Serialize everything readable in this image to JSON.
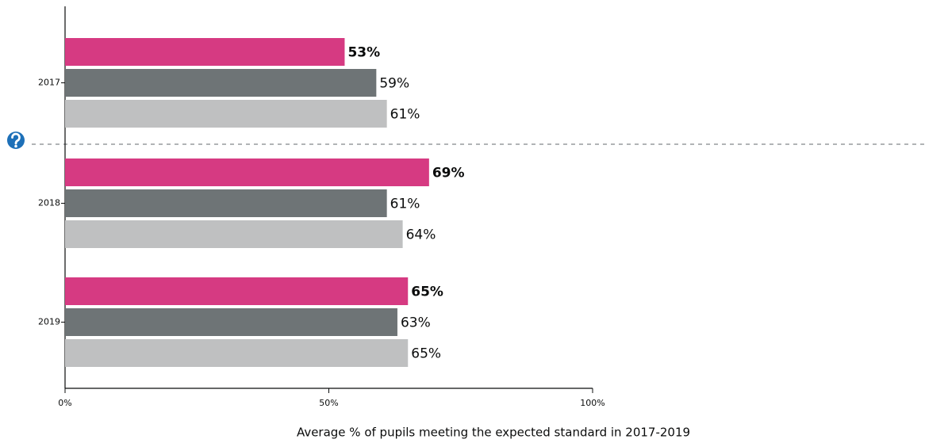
{
  "chart_data": {
    "type": "hbar",
    "x_label": "Average % of pupils meeting the expected standard in 2017-2019",
    "categories": [
      "2017",
      "2018",
      "2019"
    ],
    "series": [
      {
        "color": "#d63a82",
        "values": [
          53,
          69,
          65
        ],
        "value_labels": [
          "53%",
          "69%",
          "65%"
        ]
      },
      {
        "color": "#6e7476",
        "values": [
          59,
          61,
          63
        ],
        "value_labels": [
          "59%",
          "61%",
          "63%"
        ]
      },
      {
        "color": "#bfc0c1",
        "values": [
          61,
          64,
          65
        ],
        "value_labels": [
          "61%",
          "64%",
          "65%"
        ]
      }
    ],
    "xlim": [
      0,
      100
    ],
    "xticks": [
      {
        "value": 0,
        "label": "0%"
      },
      {
        "value": 50,
        "label": "50%"
      },
      {
        "value": 100,
        "label": "100%"
      }
    ]
  }
}
